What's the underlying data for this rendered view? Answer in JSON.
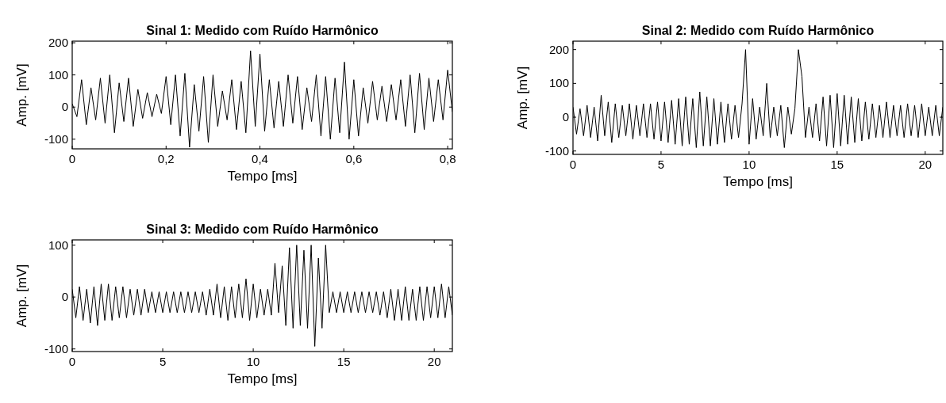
{
  "chart_data": [
    {
      "type": "line",
      "title": "Sinal 1: Medido com Ruído Harmônico",
      "xlabel": "Tempo [ms]",
      "ylabel": "Amp. [mV]",
      "xlim": [
        0,
        0.81
      ],
      "ylim": [
        -130,
        205
      ],
      "xticks": [
        0,
        {
          "value": 0.2,
          "label": "0,2"
        },
        {
          "value": 0.4,
          "label": "0,4"
        },
        {
          "value": 0.6,
          "label": "0,6"
        },
        {
          "value": 0.8,
          "label": "0,8"
        }
      ],
      "yticks": [
        -100,
        0,
        100,
        200
      ],
      "grid": false,
      "series": [
        {
          "color": "#000000",
          "x": [
            0,
            0.01,
            0.02,
            0.03,
            0.04,
            0.05,
            0.06,
            0.07,
            0.08,
            0.09,
            0.1,
            0.11,
            0.12,
            0.13,
            0.14,
            0.15,
            0.16,
            0.17,
            0.18,
            0.19,
            0.2,
            0.21,
            0.22,
            0.23,
            0.24,
            0.25,
            0.26,
            0.27,
            0.28,
            0.29,
            0.3,
            0.31,
            0.32,
            0.33,
            0.34,
            0.35,
            0.36,
            0.37,
            0.38,
            0.39,
            0.4,
            0.41,
            0.42,
            0.43,
            0.44,
            0.45,
            0.46,
            0.47,
            0.48,
            0.49,
            0.5,
            0.51,
            0.52,
            0.53,
            0.54,
            0.55,
            0.56,
            0.57,
            0.58,
            0.59,
            0.6,
            0.61,
            0.62,
            0.63,
            0.64,
            0.65,
            0.66,
            0.67,
            0.68,
            0.69,
            0.7,
            0.71,
            0.72,
            0.73,
            0.74,
            0.75,
            0.76,
            0.77,
            0.78,
            0.79,
            0.8,
            0.81
          ],
          "values": [
            10,
            -30,
            85,
            -55,
            60,
            -40,
            90,
            -50,
            100,
            -80,
            75,
            -45,
            90,
            -60,
            55,
            -35,
            45,
            -30,
            40,
            -20,
            95,
            -55,
            100,
            -90,
            105,
            -125,
            70,
            -75,
            95,
            -110,
            100,
            -60,
            50,
            -40,
            85,
            -70,
            80,
            -80,
            175,
            -60,
            165,
            -75,
            85,
            -65,
            80,
            -60,
            100,
            -50,
            95,
            -70,
            60,
            -45,
            100,
            -90,
            95,
            -100,
            90,
            -80,
            140,
            -100,
            85,
            -90,
            60,
            -50,
            80,
            -40,
            65,
            -45,
            70,
            -40,
            85,
            -60,
            100,
            -80,
            105,
            -70,
            90,
            -45,
            85,
            -40,
            115,
            -15
          ]
        }
      ]
    },
    {
      "type": "line",
      "title": "Sinal 2: Medido com Ruído Harmônico",
      "xlabel": "Tempo [ms]",
      "ylabel": "Amp. [mV]",
      "xlim": [
        0,
        21
      ],
      "ylim": [
        -110,
        225
      ],
      "xticks": [
        0,
        5,
        10,
        15,
        20
      ],
      "yticks": [
        -100,
        0,
        100,
        200
      ],
      "grid": false,
      "series": [
        {
          "color": "#000000",
          "x": [
            0,
            0.2,
            0.4,
            0.6,
            0.8,
            1,
            1.2,
            1.4,
            1.6,
            1.8,
            2,
            2.2,
            2.4,
            2.6,
            2.8,
            3,
            3.2,
            3.4,
            3.6,
            3.8,
            4,
            4.2,
            4.4,
            4.6,
            4.8,
            5,
            5.2,
            5.4,
            5.6,
            5.8,
            6,
            6.2,
            6.4,
            6.6,
            6.8,
            7,
            7.2,
            7.4,
            7.6,
            7.8,
            8,
            8.2,
            8.4,
            8.6,
            8.8,
            9,
            9.2,
            9.4,
            9.6,
            9.8,
            10,
            10.2,
            10.4,
            10.6,
            10.8,
            11,
            11.2,
            11.4,
            11.6,
            11.8,
            12,
            12.2,
            12.4,
            12.6,
            12.8,
            13,
            13.2,
            13.4,
            13.6,
            13.8,
            14,
            14.2,
            14.4,
            14.6,
            14.8,
            15,
            15.2,
            15.4,
            15.6,
            15.8,
            16,
            16.2,
            16.4,
            16.6,
            16.8,
            17,
            17.2,
            17.4,
            17.6,
            17.8,
            18,
            18.2,
            18.4,
            18.6,
            18.8,
            19,
            19.2,
            19.4,
            19.6,
            19.8,
            20,
            20.2,
            20.4,
            20.6,
            20.8,
            21
          ],
          "values": [
            30,
            -50,
            25,
            -55,
            35,
            -60,
            30,
            -70,
            65,
            -55,
            45,
            -75,
            40,
            -60,
            35,
            -55,
            40,
            -65,
            35,
            -55,
            40,
            -60,
            40,
            -65,
            45,
            -70,
            45,
            -75,
            50,
            -80,
            55,
            -85,
            60,
            -80,
            55,
            -90,
            75,
            -85,
            60,
            -85,
            55,
            -80,
            45,
            -75,
            40,
            -65,
            35,
            -60,
            40,
            200,
            -80,
            55,
            -65,
            30,
            -55,
            100,
            -60,
            30,
            -55,
            35,
            -90,
            30,
            -50,
            25,
            200,
            120,
            -60,
            30,
            -60,
            40,
            -70,
            60,
            -85,
            65,
            -90,
            70,
            -85,
            65,
            -80,
            60,
            -75,
            55,
            -70,
            45,
            -65,
            40,
            -60,
            35,
            -60,
            45,
            -60,
            35,
            -55,
            35,
            -60,
            40,
            -55,
            35,
            -60,
            40,
            -55,
            30,
            -55,
            35,
            -55,
            30
          ]
        }
      ]
    },
    {
      "type": "line",
      "title": "Sinal 3: Medido com Ruído Harmônico",
      "xlabel": "Tempo [ms]",
      "ylabel": "Amp. [mV]",
      "xlim": [
        0,
        21
      ],
      "ylim": [
        -105,
        110
      ],
      "xticks": [
        0,
        5,
        10,
        15,
        20
      ],
      "yticks": [
        -100,
        0,
        100
      ],
      "grid": false,
      "series": [
        {
          "color": "#000000",
          "x": [
            0,
            0.2,
            0.4,
            0.6,
            0.8,
            1,
            1.2,
            1.4,
            1.6,
            1.8,
            2,
            2.2,
            2.4,
            2.6,
            2.8,
            3,
            3.2,
            3.4,
            3.6,
            3.8,
            4,
            4.2,
            4.4,
            4.6,
            4.8,
            5,
            5.2,
            5.4,
            5.6,
            5.8,
            6,
            6.2,
            6.4,
            6.6,
            6.8,
            7,
            7.2,
            7.4,
            7.6,
            7.8,
            8,
            8.2,
            8.4,
            8.6,
            8.8,
            9,
            9.2,
            9.4,
            9.6,
            9.8,
            10,
            10.2,
            10.4,
            10.6,
            10.8,
            11,
            11.2,
            11.4,
            11.6,
            11.8,
            12,
            12.2,
            12.4,
            12.6,
            12.8,
            13,
            13.2,
            13.4,
            13.6,
            13.8,
            14,
            14.2,
            14.4,
            14.6,
            14.8,
            15,
            15.2,
            15.4,
            15.6,
            15.8,
            16,
            16.2,
            16.4,
            16.6,
            16.8,
            17,
            17.2,
            17.4,
            17.6,
            17.8,
            18,
            18.2,
            18.4,
            18.6,
            18.8,
            19,
            19.2,
            19.4,
            19.6,
            19.8,
            20,
            20.2,
            20.4,
            20.6,
            20.8,
            21
          ],
          "values": [
            15,
            -40,
            20,
            -45,
            15,
            -50,
            20,
            -55,
            25,
            -45,
            25,
            -45,
            20,
            -40,
            20,
            -40,
            15,
            -35,
            15,
            -35,
            15,
            -30,
            10,
            -30,
            10,
            -30,
            10,
            -30,
            10,
            -30,
            10,
            -30,
            10,
            -30,
            10,
            -30,
            10,
            -35,
            15,
            -35,
            25,
            -40,
            20,
            -45,
            20,
            -40,
            25,
            -40,
            35,
            -45,
            25,
            -40,
            15,
            -35,
            15,
            -35,
            65,
            -30,
            60,
            -55,
            95,
            -60,
            100,
            -55,
            90,
            -60,
            100,
            -95,
            75,
            -60,
            100,
            -30,
            10,
            -30,
            10,
            -30,
            10,
            -30,
            10,
            -30,
            10,
            -30,
            10,
            -30,
            10,
            -35,
            10,
            -40,
            15,
            -45,
            15,
            -45,
            20,
            -45,
            15,
            -45,
            20,
            -45,
            20,
            -40,
            20,
            -40,
            25,
            -40,
            20,
            -35
          ]
        }
      ]
    }
  ]
}
